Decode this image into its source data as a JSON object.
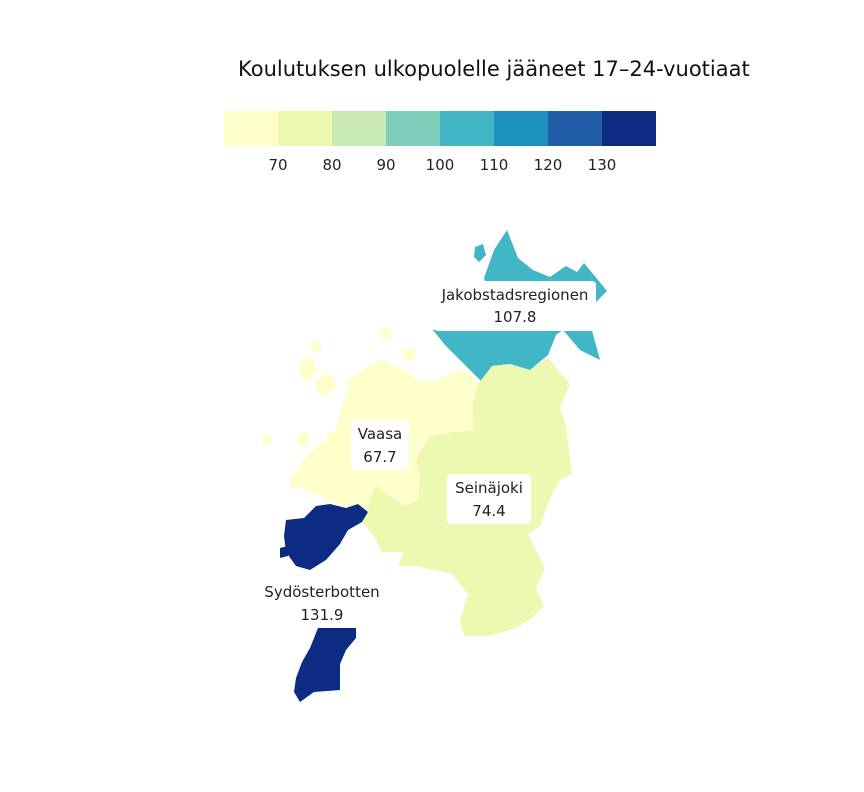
{
  "title": "Koulutuksen ulkopuolelle jääneet 17–24-vuotiaat",
  "legend": {
    "colors": [
      "#ffffcc",
      "#edf8b1",
      "#c7e9b4",
      "#7fcdbb",
      "#41b6c4",
      "#1d91c0",
      "#225ea8",
      "#0c2c84"
    ],
    "ticks": [
      "70",
      "80",
      "90",
      "100",
      "110",
      "120",
      "130"
    ]
  },
  "regions": [
    {
      "name": "Jakobstadsregionen",
      "value": "107.8",
      "color": "#41b6c4"
    },
    {
      "name": "Vaasa",
      "value": "67.7",
      "color": "#ffffcc"
    },
    {
      "name": "Seinäjoki",
      "value": "74.4",
      "color": "#edf8b1"
    },
    {
      "name": "Sydösterbotten",
      "value": "131.9",
      "color": "#0c2c84"
    }
  ]
}
